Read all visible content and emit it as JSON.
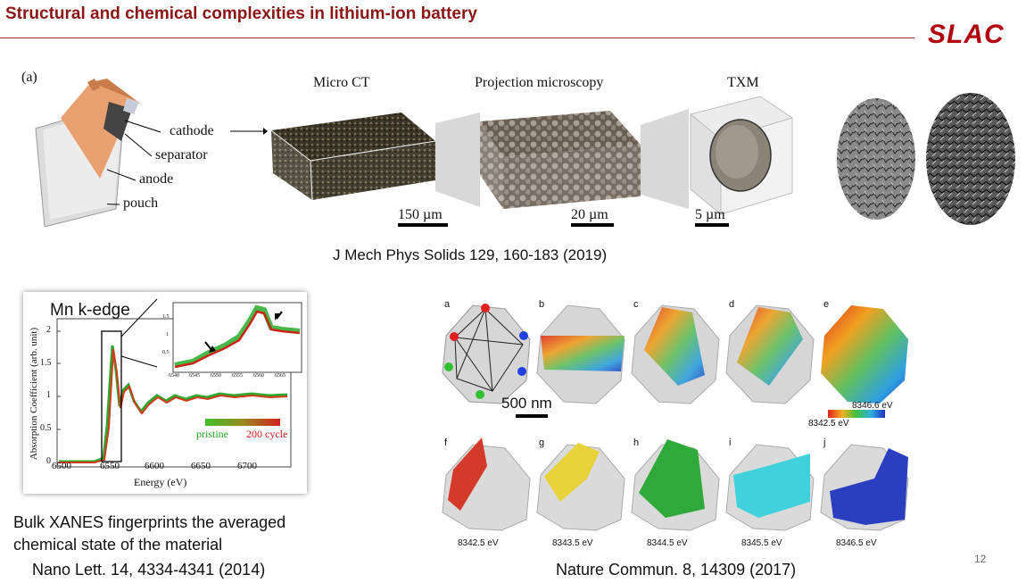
{
  "slide": {
    "title": "Structural and chemical complexities in lithium-ion battery",
    "logo_text": "SLAC",
    "page_number": "12"
  },
  "top_figure": {
    "panel_label": "(a)",
    "components": [
      "cathode",
      "separator",
      "anode",
      "pouch"
    ],
    "headings": {
      "micro_ct": "Micro CT",
      "projection": "Projection microscopy",
      "txm": "TXM"
    },
    "scale_bars": [
      "150 µm",
      "20 µm",
      "5 µm"
    ],
    "citation": "J Mech Phys Solids 129, 160-183 (2019)"
  },
  "xanes": {
    "edge_label": "Mn k-edge",
    "y_axis_label": "Absorption Coefficient (arb. unit)",
    "x_axis_label": "Energy (eV)",
    "x_ticks": [
      "6500",
      "6550",
      "6600",
      "6650",
      "6700"
    ],
    "y_ticks": [
      "0",
      "0.5",
      "1",
      "1.5",
      "2"
    ],
    "inset_x_ticks": [
      "6540",
      "6545",
      "6550",
      "6555",
      "6560",
      "6565"
    ],
    "inset_y_ticks": [
      "0.5",
      "1",
      "1.5"
    ],
    "legend_left": "pristine",
    "legend_right": "200 cycle",
    "caption_line1": "Bulk XANES fingerprints the averaged",
    "caption_line2": "chemical state of the material",
    "citation": "Nano Lett. 14, 4334-4341 (2014)"
  },
  "particles": {
    "row1_letters": [
      "a",
      "b",
      "c",
      "d",
      "e"
    ],
    "row2_letters": [
      "f",
      "g",
      "h",
      "i",
      "j"
    ],
    "scale_bar": "500 nm",
    "colorbar_max": "8346.6 eV",
    "colorbar_min": "8342.5 eV",
    "energies": [
      "8342.5 eV",
      "8343.5 eV",
      "8344.5 eV",
      "8345.5 eV",
      "8346.5 eV"
    ],
    "citation": "Nature Commun. 8, 14309 (2017)"
  },
  "colors": {
    "title_red": "#8c1515",
    "pristine_green": "#1fa31f",
    "cycle_red": "#d01818"
  }
}
